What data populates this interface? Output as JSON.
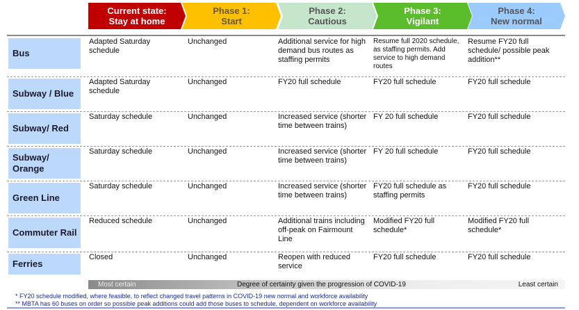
{
  "phases": [
    {
      "line1": "Current state:",
      "line2": "Stay at home",
      "bg": "#c00000",
      "fg": "#ffffff"
    },
    {
      "line1": "Phase 1:",
      "line2": "Start",
      "bg": "#ffc000",
      "fg": "#6b5a2a"
    },
    {
      "line1": "Phase 2:",
      "line2": "Cautious",
      "bg": "#c6e6cc",
      "fg": "#555555"
    },
    {
      "line1": "Phase 3:",
      "line2": "Vigilant",
      "bg": "#5bbd2b",
      "fg": "#ffffff"
    },
    {
      "line1": "Phase 4:",
      "line2": "New normal",
      "bg": "#9ccbff",
      "fg": "#555555"
    }
  ],
  "rows": [
    {
      "label": "Bus",
      "cells": [
        "Adapted Saturday schedule",
        "Unchanged",
        "Additional service for high demand bus routes as staffing permits",
        "Resume full 2020 schedule, as staffing permits. Add service to high demand routes",
        "Resume FY20 full schedule/ possible peak addition**"
      ]
    },
    {
      "label": "Subway / Blue",
      "cells": [
        "Adapted Saturday schedule",
        "Unchanged",
        "FY20 full schedule",
        "FY20 full schedule",
        "FY20 full schedule"
      ]
    },
    {
      "label": "Subway/ Red",
      "cells": [
        "Saturday schedule",
        "Unchanged",
        "Increased service (shorter time between trains)",
        "FY 20 full schedule",
        "FY20 full schedule"
      ]
    },
    {
      "label": "Subway/ Orange",
      "cells": [
        "Saturday schedule",
        "Unchanged",
        "Increased service (shorter time between trains)",
        "FY 20 full schedule",
        "FY20 full schedule"
      ]
    },
    {
      "label": "Green Line",
      "cells": [
        "Saturday schedule",
        "Unchanged",
        "Increased service (shorter time between trains)",
        "FY20 full schedule as staffing permits",
        "FY20 full schedule"
      ]
    },
    {
      "label": "Commuter Rail",
      "cells": [
        "Reduced schedule",
        "Unchanged",
        "Additional trains including off-peak on Fairmount Line",
        "Modified FY20 full schedule*",
        "Modified FY20 full schedule*"
      ]
    },
    {
      "label": "Ferries",
      "cells": [
        "Closed",
        "Unchanged",
        "Reopen with reduced service",
        "FY20 full schedule",
        "FY20 full schedule"
      ]
    }
  ],
  "certainty": {
    "left": "Most certain",
    "center": "Degree of certainty given the progression of COVID-19",
    "right": "Least certain"
  },
  "footnotes": [
    "* FY20 schedule modified, where feasible, to reflect changed travel patterns in COVID-19 new normal and workforce availability",
    "** MBTA has 60 buses on order so possible peak additions could add those buses to schedule, dependent on workforce availability"
  ]
}
